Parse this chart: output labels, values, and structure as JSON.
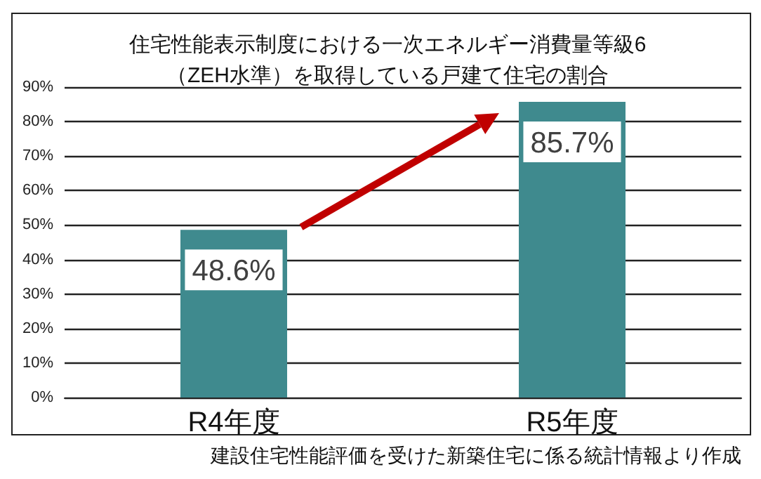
{
  "chart_data": {
    "type": "bar",
    "title": "住宅性能表示制度における一次エネルギー消費量等級6\n（ZEH水準）を取得している戸建て住宅の割合",
    "categories": [
      "R4年度",
      "R5年度"
    ],
    "values": [
      48.6,
      85.7
    ],
    "value_labels": [
      "48.6%",
      "85.7%"
    ],
    "color": "#3f8a8e",
    "ylim": [
      0,
      90
    ],
    "yticks": [
      {
        "value": 0,
        "label": "0%"
      },
      {
        "value": 10,
        "label": "10%"
      },
      {
        "value": 20,
        "label": "20%"
      },
      {
        "value": 30,
        "label": "30%"
      },
      {
        "value": 40,
        "label": "40%"
      },
      {
        "value": 50,
        "label": "50%"
      },
      {
        "value": 60,
        "label": "60%"
      },
      {
        "value": 70,
        "label": "70%"
      },
      {
        "value": 80,
        "label": "80%"
      },
      {
        "value": 90,
        "label": "90%"
      }
    ],
    "grid": "y",
    "annotations": [
      "建設住宅性能評価を受けた新築住宅に係る統計情報より作成"
    ]
  }
}
